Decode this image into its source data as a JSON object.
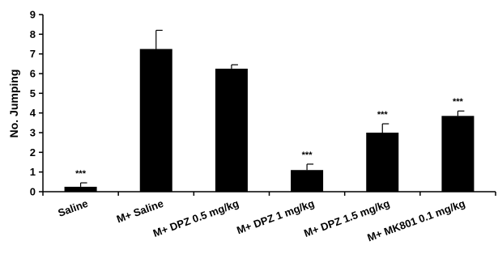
{
  "chart_data": {
    "type": "bar",
    "title": "",
    "xlabel": "",
    "ylabel": "No. Jumping",
    "ylim": [
      0,
      9
    ],
    "yticks": [
      0,
      1,
      2,
      3,
      4,
      5,
      6,
      7,
      8,
      9
    ],
    "categories": [
      "Saline",
      "M+ Saline",
      "M+ DPZ 0.5 mg/kg",
      "M+ DPZ 1 mg/kg",
      "M+ DPZ 1.5 mg/kg",
      "M+ MK801 0.1 mg/kg"
    ],
    "values": [
      0.25,
      7.25,
      6.25,
      1.1,
      3.0,
      3.85
    ],
    "errors": [
      0.2,
      0.95,
      0.2,
      0.3,
      0.45,
      0.25
    ],
    "annotations": [
      "***",
      "",
      "",
      "***",
      "***",
      "***"
    ],
    "bar_color": "#000000",
    "grid": false,
    "legend": "none"
  }
}
